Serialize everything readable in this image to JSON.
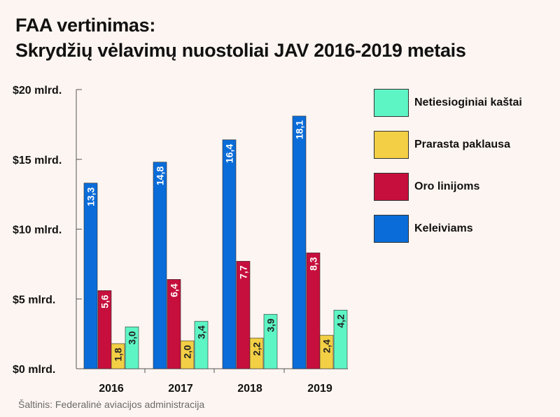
{
  "title_line1": "FAA vertinimas:",
  "title_line2": "Skrydžių vėlavimų nuostoliai JAV 2016-2019 metais",
  "source": "Šaltinis: Federalinė aviacijos administracija",
  "colors": {
    "Keleiviams": "#0a6cd8",
    "Oro linijoms": "#c60f3c",
    "Prarasta paklausa": "#f3cf45",
    "Netiesioginiai kaštai": "#5ef5c5"
  },
  "chart_data": {
    "type": "bar",
    "categories": [
      "2016",
      "2017",
      "2018",
      "2019"
    ],
    "ylim": [
      0,
      20
    ],
    "yticks": [
      {
        "value": 0,
        "label": "$0 mlrd."
      },
      {
        "value": 5,
        "label": "$5 mlrd."
      },
      {
        "value": 10,
        "label": "$10 mlrd."
      },
      {
        "value": 15,
        "label": "$15 mlrd."
      },
      {
        "value": 20,
        "label": "$20 mlrd."
      }
    ],
    "series": [
      {
        "name": "Keleiviams",
        "values": [
          13.3,
          14.8,
          16.4,
          18.1
        ],
        "labels": [
          "13,3",
          "14,8",
          "16,4",
          "18,1"
        ]
      },
      {
        "name": "Oro linijoms",
        "values": [
          5.6,
          6.4,
          7.7,
          8.3
        ],
        "labels": [
          "5,6",
          "6,4",
          "7,7",
          "8,3"
        ]
      },
      {
        "name": "Prarasta paklausa",
        "values": [
          1.8,
          2.0,
          2.2,
          2.4
        ],
        "labels": [
          "1,8",
          "2,0",
          "2,2",
          "2,4"
        ]
      },
      {
        "name": "Netiesioginiai kaštai",
        "values": [
          3.0,
          3.4,
          3.9,
          4.2
        ],
        "labels": [
          "3,0",
          "3,4",
          "3,9",
          "4,2"
        ]
      }
    ],
    "legend": [
      "Netiesioginiai kaštai",
      "Prarasta paklausa",
      "Oro linijoms",
      "Keleiviams"
    ],
    "legend_position": "right"
  }
}
